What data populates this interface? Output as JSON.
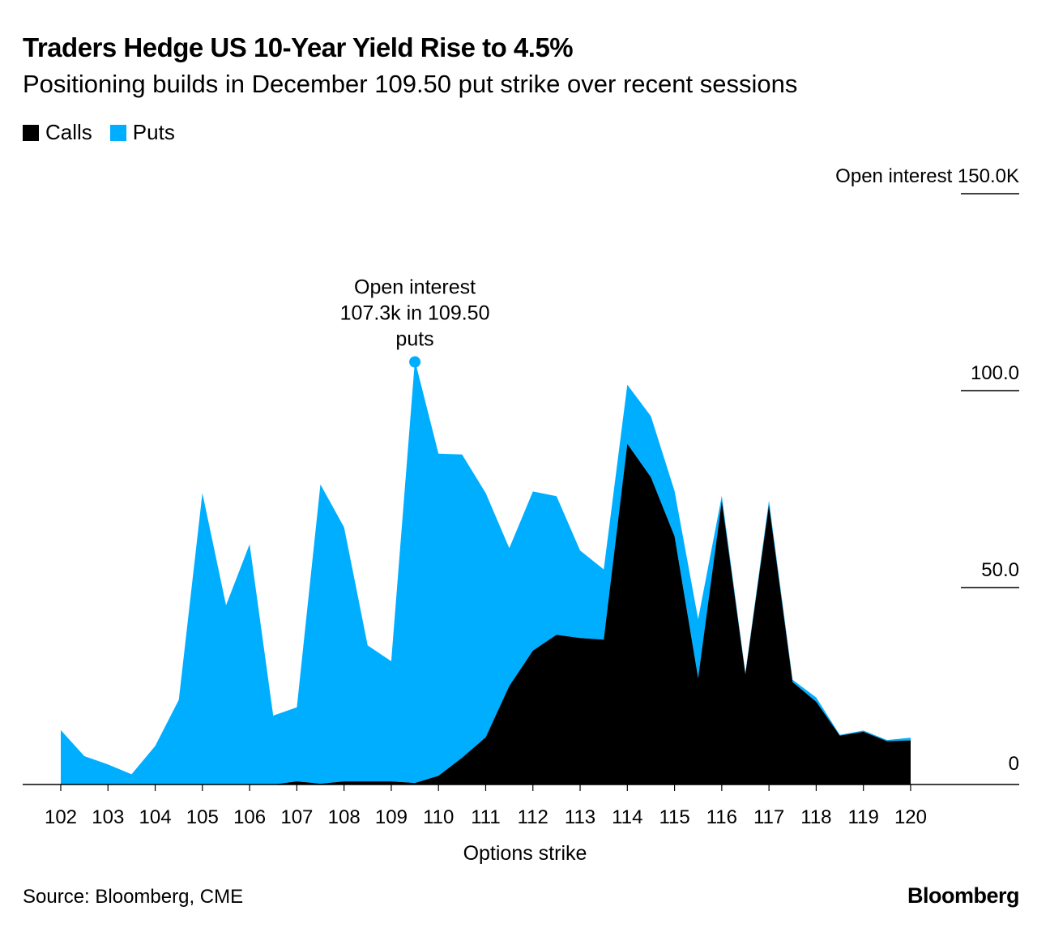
{
  "header": {
    "title": "Traders Hedge US 10-Year Yield Rise to 4.5%",
    "subtitle": "Positioning builds in December 109.50 put strike over recent sessions"
  },
  "legend": [
    {
      "label": "Calls",
      "color": "#000000"
    },
    {
      "label": "Puts",
      "color": "#00aeff"
    }
  ],
  "footer": {
    "source": "Source: Bloomberg, CME",
    "logo": "Bloomberg"
  },
  "chart_data": {
    "type": "area",
    "stacked": true,
    "x": [
      102,
      102.5,
      103,
      103.5,
      104,
      104.5,
      105,
      105.5,
      106,
      106.5,
      107,
      107.5,
      108,
      108.5,
      109,
      109.5,
      110,
      110.5,
      111,
      111.5,
      112,
      112.5,
      113,
      113.5,
      114,
      114.5,
      115,
      115.5,
      116,
      116.5,
      117,
      117.5,
      118,
      118.5,
      119,
      119.5,
      120
    ],
    "series": [
      {
        "name": "Calls",
        "color": "#000000",
        "values": [
          0,
          0,
          0,
          0,
          0,
          0,
          0,
          0,
          0,
          0,
          0.8,
          0.2,
          0.8,
          0.8,
          0.8,
          0.4,
          2.2,
          6.8,
          12,
          25,
          34,
          38,
          37.2,
          36.8,
          86.5,
          78,
          63,
          27,
          72,
          28,
          71,
          26,
          21,
          12.4,
          13.4,
          11,
          11.2
        ]
      },
      {
        "name": "Puts",
        "color": "#00aeff",
        "values": [
          13.8,
          7.2,
          5.1,
          2.6,
          9.8,
          21.5,
          74,
          45.5,
          61,
          17.5,
          18.8,
          76,
          64.5,
          34.5,
          30.5,
          107.3,
          81.8,
          77,
          62,
          35,
          40.4,
          35.2,
          22.2,
          17.8,
          15,
          15.5,
          11.5,
          15,
          1.3,
          0.4,
          1.1,
          0.6,
          1.1,
          0.2,
          0.3,
          0.3,
          0.7
        ]
      }
    ],
    "xlabel": "Options strike",
    "ylabel": "Open interest",
    "ylim": [
      0,
      150
    ],
    "xlim": [
      102,
      122.3
    ],
    "xticks": [
      "102",
      "103",
      "104",
      "105",
      "106",
      "107",
      "108",
      "109",
      "110",
      "111",
      "112",
      "113",
      "114",
      "115",
      "116",
      "117",
      "118",
      "119",
      "120"
    ],
    "yticks": [
      {
        "value": 0,
        "label": "0"
      },
      {
        "value": 50,
        "label": "50.0"
      },
      {
        "value": 100,
        "label": "100.0"
      },
      {
        "value": 150,
        "label": "Open interest 150.0K"
      }
    ],
    "annotation": {
      "x": 109.5,
      "y": 107.3,
      "lines": [
        "Open interest",
        "107.3k in 109.50",
        "puts"
      ]
    }
  }
}
